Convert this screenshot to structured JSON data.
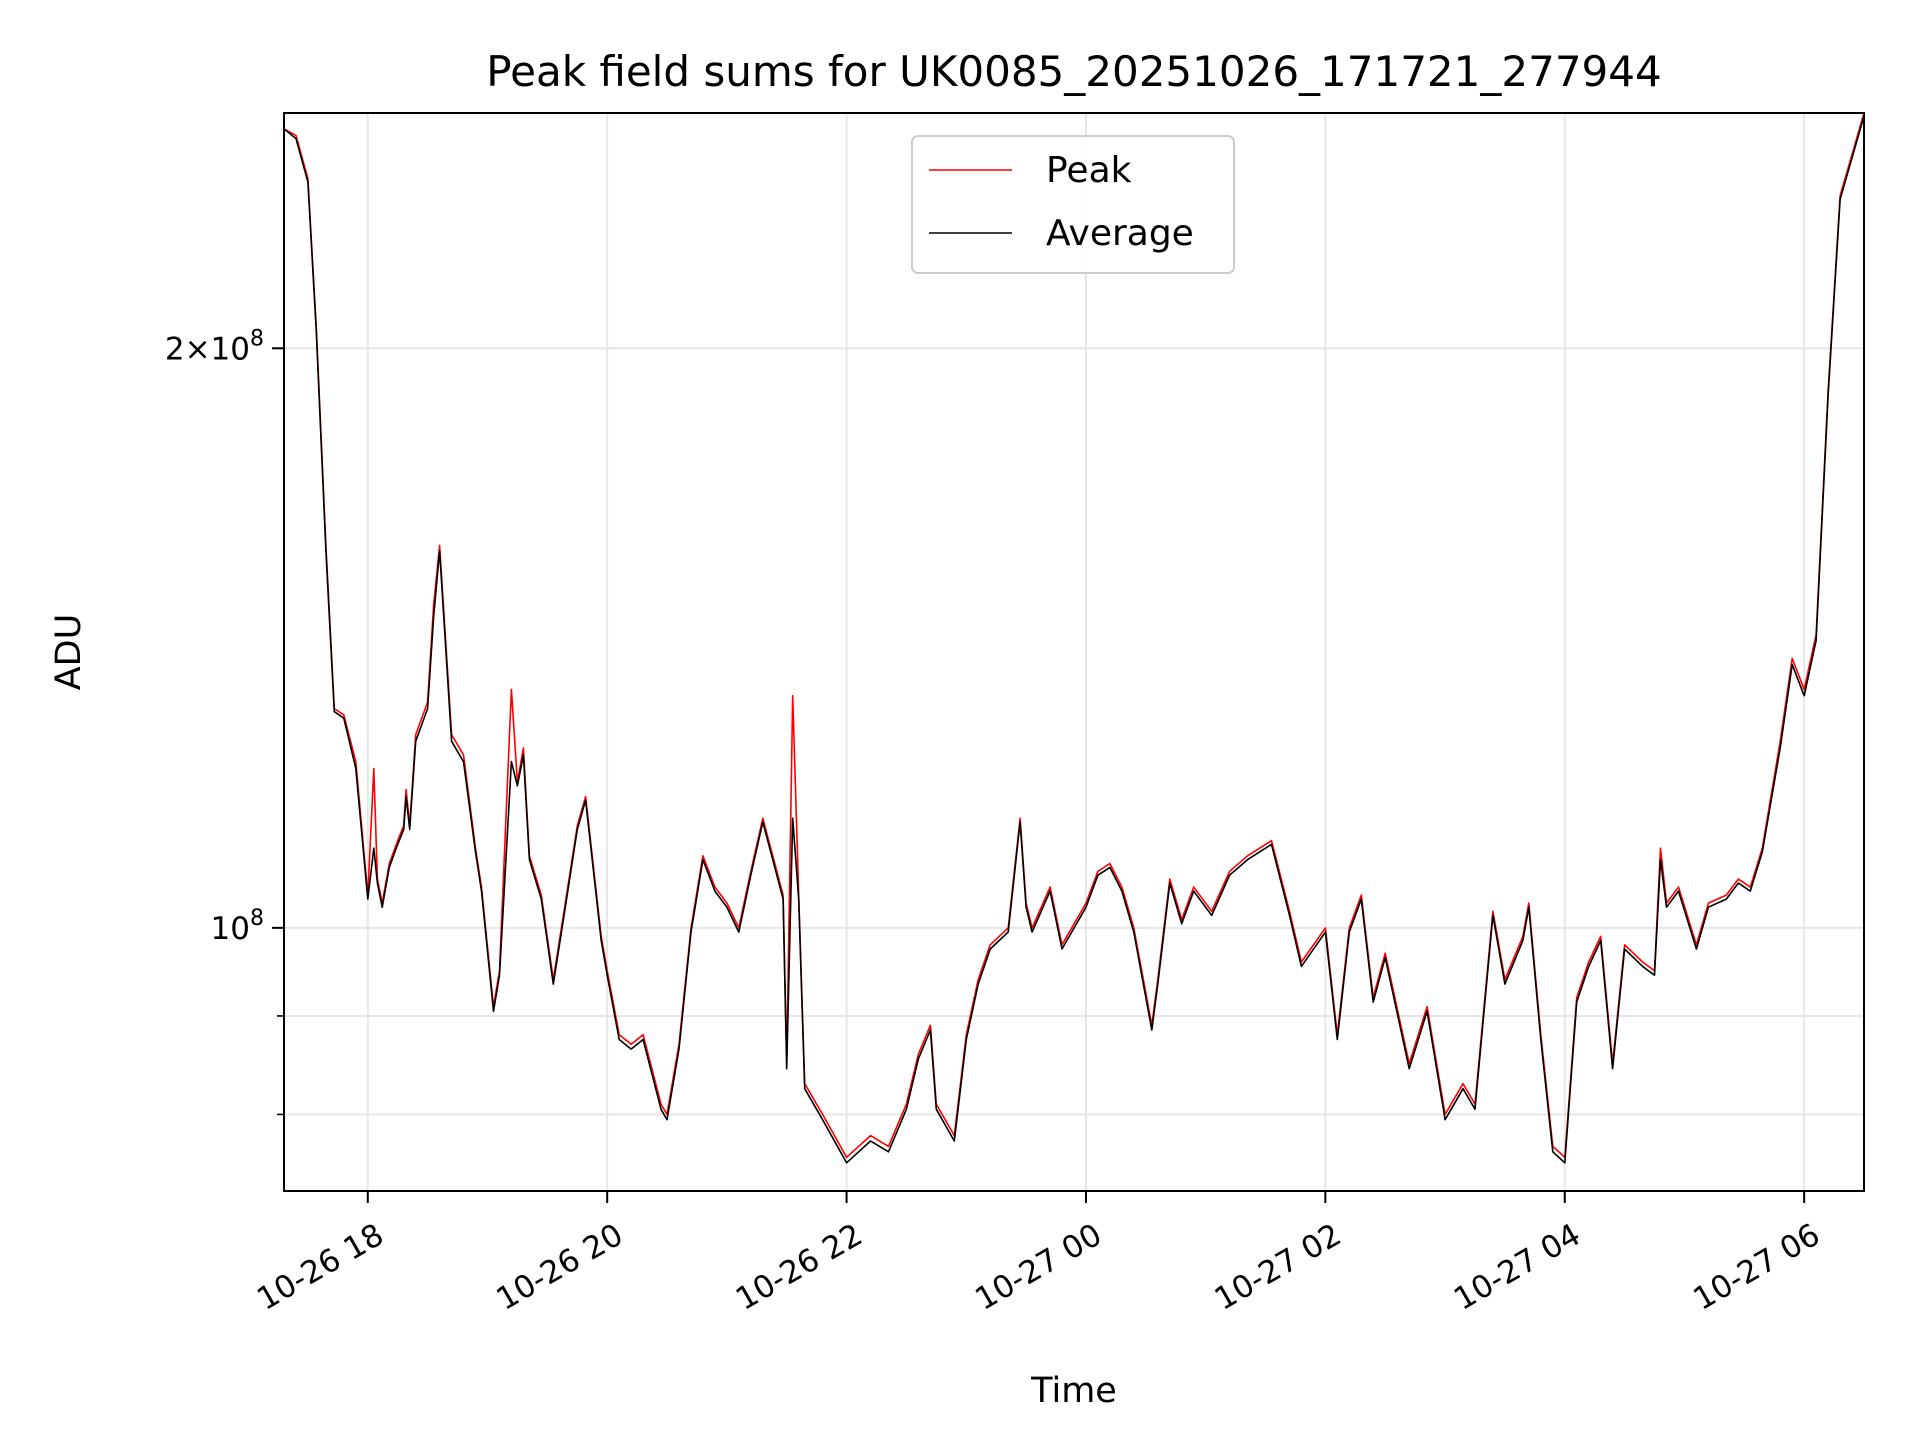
{
  "chart_data": {
    "type": "line",
    "title": "Peak field sums for UK0085_20251026_171721_277944",
    "xlabel": "Time",
    "ylabel": "ADU",
    "yscale": "log",
    "xlim_hours": [
      -0.7,
      12.5
    ],
    "ylim": [
      73000000,
      265000000
    ],
    "grid": true,
    "legend_position": "upper center",
    "x_ticks": [
      {
        "label": "10-26 18",
        "hour": 0
      },
      {
        "label": "10-26 20",
        "hour": 2
      },
      {
        "label": "10-26 22",
        "hour": 4
      },
      {
        "label": "10-27 00",
        "hour": 6
      },
      {
        "label": "10-27 02",
        "hour": 8
      },
      {
        "label": "10-27 04",
        "hour": 10
      },
      {
        "label": "10-27 06",
        "hour": 12
      }
    ],
    "y_ticks_major": [
      {
        "value": 200000000,
        "mantissa": "2×10",
        "exp": "8"
      },
      {
        "value": 100000000,
        "mantissa": "10",
        "exp": "8"
      }
    ],
    "y_ticks_minor": [
      80000000,
      90000000
    ],
    "colors": {
      "peak": "#ff0000",
      "average": "#000000",
      "grid": "#e6e6e6"
    },
    "series": [
      {
        "name": "Peak",
        "x_hours": [
          -0.7,
          -0.6,
          -0.5,
          -0.43,
          -0.35,
          -0.28,
          -0.2,
          -0.1,
          0,
          0.05,
          0.08,
          0.12,
          0.18,
          0.25,
          0.3,
          0.32,
          0.35,
          0.4,
          0.5,
          0.55,
          0.6,
          0.7,
          0.8,
          0.9,
          0.95,
          1.05,
          1.1,
          1.2,
          1.25,
          1.3,
          1.35,
          1.45,
          1.55,
          1.65,
          1.75,
          1.82,
          1.95,
          2.0,
          2.1,
          2.2,
          2.3,
          2.45,
          2.5,
          2.6,
          2.7,
          2.8,
          2.9,
          3.0,
          3.1,
          3.2,
          3.3,
          3.4,
          3.47,
          3.5,
          3.55,
          3.6,
          3.65,
          3.8,
          4.0,
          4.2,
          4.35,
          4.5,
          4.6,
          4.7,
          4.75,
          4.9,
          5.0,
          5.1,
          5.2,
          5.35,
          5.45,
          5.5,
          5.55,
          5.7,
          5.8,
          6.0,
          6.1,
          6.2,
          6.3,
          6.4,
          6.55,
          6.6,
          6.7,
          6.8,
          6.9,
          7.05,
          7.2,
          7.35,
          7.55,
          7.7,
          7.8,
          8.0,
          8.1,
          8.2,
          8.3,
          8.4,
          8.5,
          8.7,
          8.85,
          9.0,
          9.15,
          9.25,
          9.4,
          9.5,
          9.65,
          9.7,
          9.8,
          9.9,
          10.0,
          10.1,
          10.2,
          10.3,
          10.4,
          10.5,
          10.65,
          10.75,
          10.8,
          10.85,
          10.95,
          11.1,
          11.2,
          11.35,
          11.45,
          11.55,
          11.65,
          11.8,
          11.9,
          12.0,
          12.1,
          12.2,
          12.3,
          12.5
        ],
        "values": [
          260000000,
          258000000,
          245000000,
          205000000,
          158000000,
          130000000,
          129000000,
          122000000,
          104000000,
          121000000,
          106000000,
          103000000,
          108000000,
          111000000,
          113000000,
          118000000,
          113000000,
          126000000,
          131000000,
          147000000,
          158000000,
          126000000,
          123000000,
          110000000,
          105000000,
          91000000,
          95000000,
          133000000,
          119000000,
          124000000,
          109000000,
          104000000,
          94000000,
          103000000,
          113000000,
          117000000,
          99000000,
          95000000,
          88000000,
          87000000,
          88000000,
          81000000,
          80000000,
          87000000,
          100000000,
          109000000,
          105000000,
          103000000,
          100000000,
          107000000,
          114000000,
          108000000,
          104000000,
          85000000,
          132000000,
          104000000,
          83000000,
          80000000,
          76000000,
          78000000,
          77000000,
          81000000,
          86000000,
          89000000,
          81000000,
          78000000,
          88000000,
          94000000,
          98000000,
          100000000,
          114000000,
          103000000,
          100000000,
          105000000,
          98000000,
          103000000,
          107000000,
          108000000,
          105000000,
          100000000,
          89000000,
          94000000,
          106000000,
          101000000,
          105000000,
          102000000,
          107000000,
          109000000,
          111000000,
          102000000,
          96000000,
          100000000,
          88000000,
          100000000,
          104000000,
          92000000,
          97000000,
          85000000,
          91000000,
          80000000,
          83000000,
          81000000,
          102000000,
          94000000,
          99000000,
          103000000,
          88000000,
          77000000,
          76000000,
          92000000,
          96000000,
          99000000,
          85000000,
          98000000,
          96000000,
          95000000,
          110000000,
          103000000,
          105000000,
          98000000,
          103000000,
          104000000,
          106000000,
          105000000,
          110000000,
          125000000,
          138000000,
          133000000,
          142000000,
          190000000,
          240000000,
          265000000
        ]
      },
      {
        "name": "Average",
        "x_hours": [
          -0.7,
          -0.6,
          -0.5,
          -0.43,
          -0.35,
          -0.28,
          -0.2,
          -0.1,
          0,
          0.05,
          0.08,
          0.12,
          0.18,
          0.25,
          0.3,
          0.32,
          0.35,
          0.4,
          0.5,
          0.55,
          0.6,
          0.7,
          0.8,
          0.9,
          0.95,
          1.05,
          1.1,
          1.2,
          1.25,
          1.3,
          1.35,
          1.45,
          1.55,
          1.65,
          1.75,
          1.82,
          1.95,
          2.0,
          2.1,
          2.2,
          2.3,
          2.45,
          2.5,
          2.6,
          2.7,
          2.8,
          2.9,
          3.0,
          3.1,
          3.2,
          3.3,
          3.4,
          3.47,
          3.5,
          3.55,
          3.6,
          3.65,
          3.8,
          4.0,
          4.2,
          4.35,
          4.5,
          4.6,
          4.7,
          4.75,
          4.9,
          5.0,
          5.1,
          5.2,
          5.35,
          5.45,
          5.5,
          5.55,
          5.7,
          5.8,
          6.0,
          6.1,
          6.2,
          6.3,
          6.4,
          6.55,
          6.6,
          6.7,
          6.8,
          6.9,
          7.05,
          7.2,
          7.35,
          7.55,
          7.7,
          7.8,
          8.0,
          8.1,
          8.2,
          8.3,
          8.4,
          8.5,
          8.7,
          8.85,
          9.0,
          9.15,
          9.25,
          9.4,
          9.5,
          9.65,
          9.7,
          9.8,
          9.9,
          10.0,
          10.1,
          10.2,
          10.3,
          10.4,
          10.5,
          10.65,
          10.75,
          10.8,
          10.85,
          10.95,
          11.1,
          11.2,
          11.35,
          11.45,
          11.55,
          11.65,
          11.8,
          11.9,
          12.0,
          12.1,
          12.2,
          12.3,
          12.5
        ],
        "values": [
          260000000,
          257000000,
          244000000,
          204000000,
          157000000,
          129500000,
          128500000,
          121000000,
          103500000,
          110000000,
          105500000,
          102500000,
          107500000,
          110500000,
          112500000,
          117000000,
          112500000,
          125000000,
          130000000,
          145000000,
          157000000,
          125000000,
          122000000,
          109500000,
          104500000,
          90500000,
          94500000,
          122000000,
          118500000,
          123000000,
          108500000,
          103500000,
          93500000,
          102500000,
          112500000,
          116500000,
          98500000,
          94500000,
          87500000,
          86500000,
          87500000,
          80500000,
          79500000,
          86500000,
          99500000,
          108500000,
          104500000,
          102500000,
          99500000,
          106500000,
          113500000,
          107500000,
          103500000,
          84500000,
          114000000,
          103500000,
          82500000,
          79500000,
          75500000,
          77500000,
          76500000,
          80500000,
          85500000,
          88500000,
          80500000,
          77500000,
          87500000,
          93500000,
          97500000,
          99500000,
          113500000,
          102500000,
          99500000,
          104500000,
          97500000,
          102500000,
          106500000,
          107500000,
          104500000,
          99500000,
          88500000,
          93500000,
          105500000,
          100500000,
          104500000,
          101500000,
          106500000,
          108500000,
          110500000,
          101500000,
          95500000,
          99500000,
          87500000,
          99500000,
          103500000,
          91500000,
          96500000,
          84500000,
          90500000,
          79500000,
          82500000,
          80500000,
          101500000,
          93500000,
          98500000,
          102500000,
          87500000,
          76500000,
          75500000,
          91500000,
          95500000,
          98500000,
          84500000,
          97500000,
          95500000,
          94500000,
          108500000,
          102500000,
          104500000,
          97500000,
          102500000,
          103500000,
          105500000,
          104500000,
          109500000,
          124000000,
          137000000,
          132000000,
          141000000,
          189000000,
          239000000,
          264000000
        ]
      }
    ]
  }
}
